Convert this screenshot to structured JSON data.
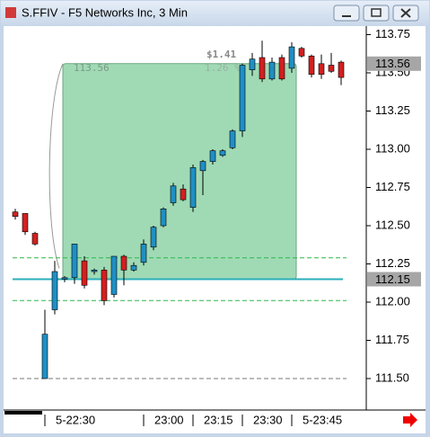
{
  "chart_data": {
    "type": "candlestick",
    "title": "S.FFIV - F5 Networks Inc, 3 Min",
    "categories": [
      null,
      null,
      null,
      "5-22:30",
      null,
      null,
      null,
      null,
      null,
      null,
      null,
      null,
      null,
      "23:00",
      null,
      null,
      null,
      null,
      "23:15",
      null,
      null,
      null,
      null,
      "23:30",
      null,
      null,
      null,
      null,
      "5-23:45",
      null,
      null,
      null,
      null,
      null
    ],
    "open": [
      112.59,
      112.58,
      112.45,
      111.5,
      111.95,
      112.15,
      112.16,
      112.27,
      112.2,
      112.21,
      112.05,
      112.3,
      112.21,
      112.26,
      112.36,
      112.5,
      112.65,
      112.74,
      112.62,
      112.86,
      112.92,
      112.96,
      113.01,
      113.12,
      113.52,
      113.6,
      113.46,
      113.6,
      113.53,
      113.66,
      113.61,
      113.56,
      113.55,
      113.57
    ],
    "high": [
      112.61,
      112.58,
      112.46,
      111.95,
      112.27,
      112.17,
      112.38,
      112.3,
      112.22,
      112.23,
      112.3,
      112.31,
      112.26,
      112.41,
      112.5,
      112.62,
      112.78,
      112.77,
      112.9,
      112.93,
      113.0,
      113.0,
      113.13,
      113.56,
      113.63,
      113.71,
      113.6,
      113.62,
      113.7,
      113.67,
      113.62,
      113.62,
      113.63,
      113.58
    ],
    "low": [
      112.54,
      112.44,
      112.37,
      111.5,
      111.92,
      112.13,
      112.12,
      112.09,
      112.18,
      111.98,
      112.03,
      112.11,
      112.2,
      112.24,
      112.34,
      112.49,
      112.63,
      112.66,
      112.59,
      112.7,
      112.9,
      112.95,
      113.0,
      113.08,
      113.48,
      113.44,
      113.45,
      113.45,
      113.5,
      113.6,
      113.47,
      113.46,
      113.5,
      113.42
    ],
    "close": [
      112.56,
      112.46,
      112.38,
      111.79,
      112.2,
      112.16,
      112.38,
      112.11,
      112.21,
      112.01,
      112.3,
      112.21,
      112.24,
      112.38,
      112.49,
      112.61,
      112.76,
      112.67,
      112.88,
      112.92,
      112.99,
      112.99,
      113.12,
      113.55,
      113.59,
      113.46,
      113.57,
      113.46,
      113.67,
      113.61,
      113.49,
      113.49,
      113.51,
      113.47
    ],
    "up_color": "#1f8fc4",
    "down_color": "#d41f1f",
    "ylim": [
      111.3,
      113.8
    ],
    "yticks": [
      113.75,
      {
        "value": 113.5,
        "label": "113.50"
      },
      113.25,
      {
        "value": 113.0,
        "label": "113.00"
      },
      112.75,
      {
        "value": 112.5,
        "label": "112.50"
      },
      112.25,
      {
        "value": 112.0,
        "label": "112.00"
      },
      111.75,
      {
        "value": 111.5,
        "label": "111.50"
      }
    ],
    "last_price": 113.56,
    "line_price": 112.15,
    "levels": [
      112.29,
      112.01
    ],
    "base_level": 111.5,
    "measure": {
      "high": 113.56,
      "low": 112.15,
      "change": 1.41,
      "change_label": "$1.41",
      "percent": 1.26,
      "percent_label": "1.26 %"
    }
  }
}
